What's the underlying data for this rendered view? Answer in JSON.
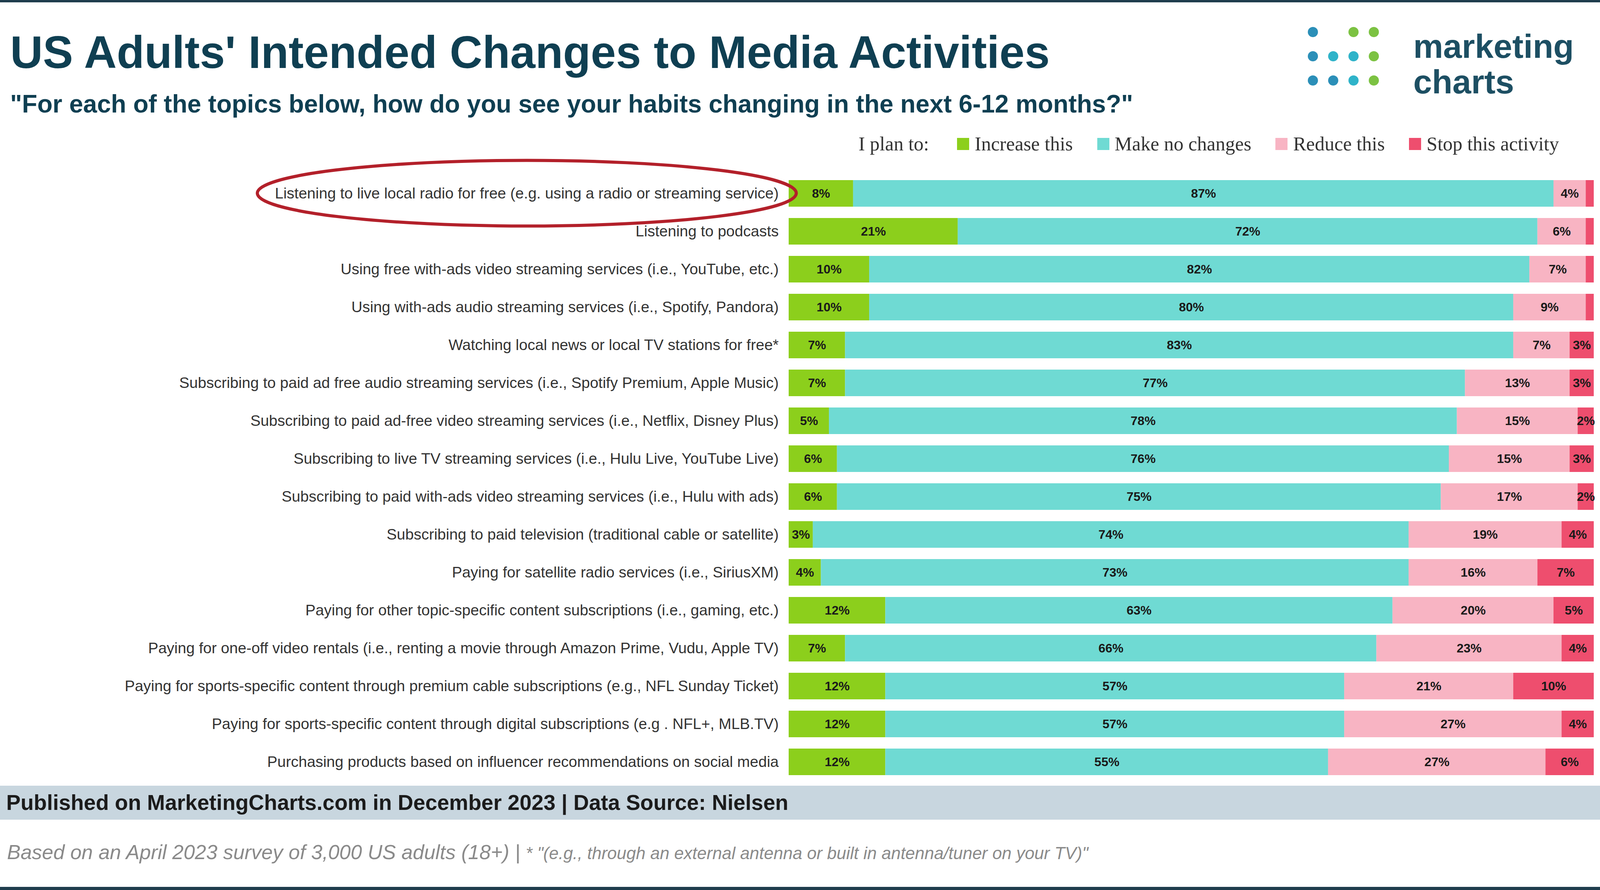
{
  "chart_data": {
    "type": "bar",
    "orientation": "horizontal",
    "stacked": true,
    "data_labels": true,
    "tick_labels": "y",
    "legend": "top",
    "title": "US Adults' Intended Changes to Media Activities",
    "subtitle": "\"For each of the topics below, how do you see your habits changing in the next 6-12 months?\"",
    "legend_title": "I plan to:",
    "logo": [
      "marketing",
      "charts"
    ],
    "categories": [
      "Listening to live local radio for free (e.g. using a radio or streaming service)",
      "Listening to podcasts",
      "Using free with-ads video streaming services (i.e., YouTube, etc.)",
      "Using with-ads audio streaming services (i.e., Spotify, Pandora)",
      "Watching local news or local TV stations for free*",
      "Subscribing to paid ad free audio streaming services (i.e., Spotify Premium, Apple Music)",
      "Subscribing to paid ad-free video streaming services (i.e., Netflix, Disney Plus)",
      "Subscribing to live TV streaming services (i.e., Hulu Live, YouTube Live)",
      "Subscribing to paid with-ads video streaming services (i.e., Hulu with ads)",
      "Subscribing to paid television (traditional cable or satellite)",
      "Paying for satellite radio services (i.e., SiriusXM)",
      "Paying for other topic-specific content subscriptions (i.e., gaming, etc.)",
      "Paying for one-off video rentals (i.e., renting a movie through Amazon Prime, Vudu, Apple TV)",
      "Paying for sports-specific content through premium cable subscriptions (e.g., NFL Sunday Ticket)",
      "Paying for sports-specific content through digital subscriptions (e.g . NFL+, MLB.TV)",
      "Purchasing products based on influencer recommendations on social media"
    ],
    "xlim": [
      0,
      100
    ],
    "series": [
      {
        "name": "Increase this",
        "color": "#8ccf1c",
        "values": [
          8,
          21,
          10,
          10,
          7,
          7,
          5,
          6,
          6,
          3,
          4,
          12,
          7,
          12,
          12,
          12
        ],
        "value_labels": [
          "8%",
          "21%",
          "10%",
          "10%",
          "7%",
          "7%",
          "5%",
          "6%",
          "6%",
          "3%",
          "4%",
          "12%",
          "7%",
          "12%",
          "12%",
          "12%"
        ]
      },
      {
        "name": "Make no changes",
        "color": "#6fdad3",
        "values": [
          87,
          72,
          82,
          80,
          83,
          77,
          78,
          76,
          75,
          74,
          73,
          63,
          66,
          57,
          57,
          55
        ],
        "value_labels": [
          "87%",
          "72%",
          "82%",
          "80%",
          "83%",
          "77%",
          "78%",
          "76%",
          "75%",
          "74%",
          "73%",
          "63%",
          "66%",
          "57%",
          "57%",
          "55%"
        ]
      },
      {
        "name": "Reduce this",
        "color": "#f8b4c3",
        "values": [
          4,
          6,
          7,
          9,
          7,
          13,
          15,
          15,
          17,
          19,
          16,
          20,
          23,
          21,
          27,
          27
        ],
        "value_labels": [
          "4%",
          "6%",
          "7%",
          "9%",
          "7%",
          "13%",
          "15%",
          "15%",
          "17%",
          "19%",
          "16%",
          "20%",
          "23%",
          "21%",
          "27%",
          "27%"
        ]
      },
      {
        "name": "Stop this activity",
        "color": "#ee4e6e",
        "values": [
          1,
          1,
          1,
          1,
          3,
          3,
          2,
          3,
          2,
          4,
          7,
          5,
          4,
          10,
          4,
          6
        ],
        "value_labels": [
          null,
          null,
          null,
          null,
          "3%",
          "3%",
          "2%",
          "3%",
          "2%",
          "4%",
          "7%",
          "5%",
          "4%",
          "10%",
          "4%",
          "6%"
        ]
      }
    ],
    "source": "Published on MarketingCharts.com in December 2023 | Data Source: Nielsen",
    "note": "Based on an April 2023 survey of 3,000 US adults (18+) |",
    "footnote": "* \"(e.g., through an external antenna or built in antenna/tuner on your TV)\""
  }
}
